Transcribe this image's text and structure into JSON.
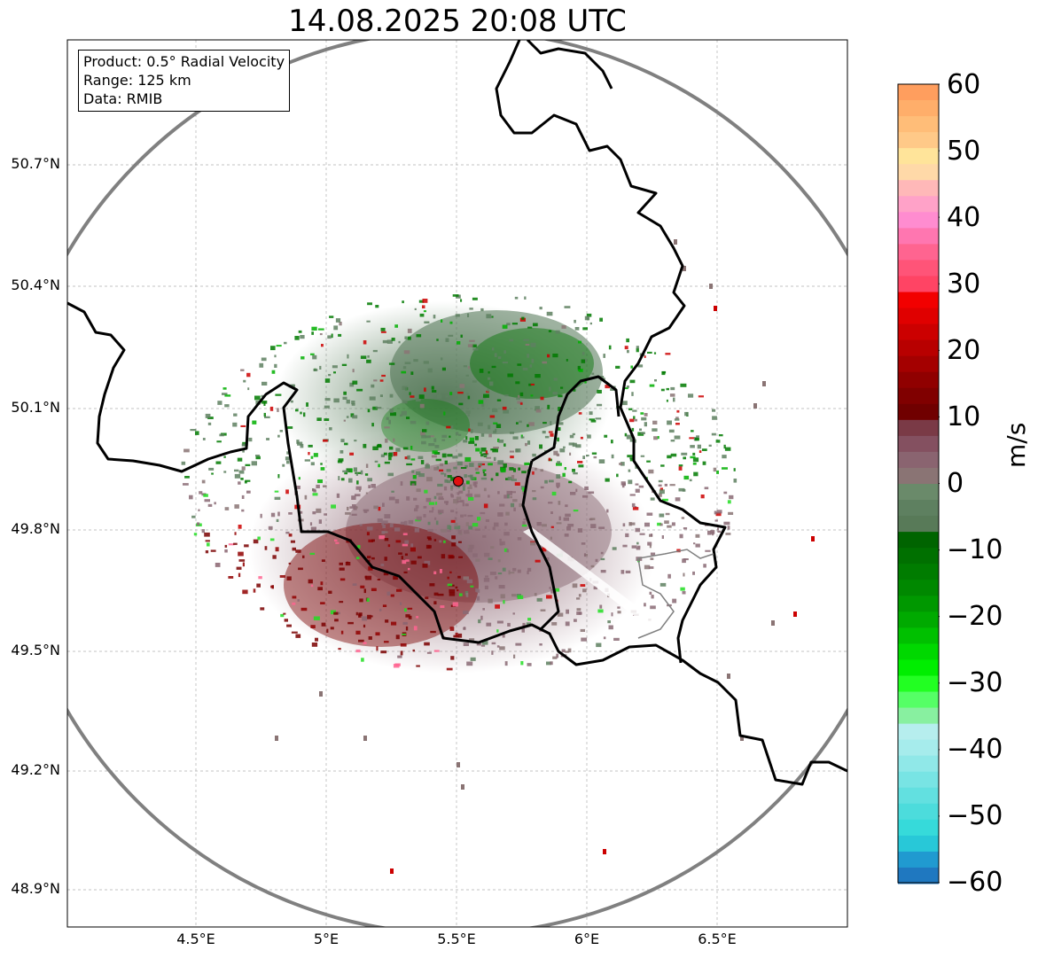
{
  "title": "14.08.2025 20:08 UTC",
  "info": {
    "product": "Product: 0.5° Radial Velocity",
    "range": "Range: 125 km",
    "data": "Data: RMIB"
  },
  "axes": {
    "lat_ticks": [
      "50.7°N",
      "50.4°N",
      "50.1°N",
      "49.8°N",
      "49.5°N",
      "49.2°N",
      "48.9°N"
    ],
    "lon_ticks": [
      "4.5°E",
      "5°E",
      "5.5°E",
      "6°E",
      "6.5°E"
    ],
    "lat_range": [
      48.8,
      50.98
    ],
    "lon_range": [
      4.0,
      7.0
    ]
  },
  "radar_site": {
    "lat": 49.914,
    "lon": 5.505
  },
  "colorbar": {
    "label": "m/s",
    "ticks": [
      "60",
      "50",
      "40",
      "30",
      "20",
      "10",
      "0",
      "−10",
      "−20",
      "−30",
      "−40",
      "−50",
      "−60"
    ],
    "range": [
      -60,
      60
    ]
  },
  "colors": {
    "range_ring": "#808080",
    "border": "#000000",
    "site_marker": "#e01010",
    "gridline": "#b0b0b0"
  }
}
